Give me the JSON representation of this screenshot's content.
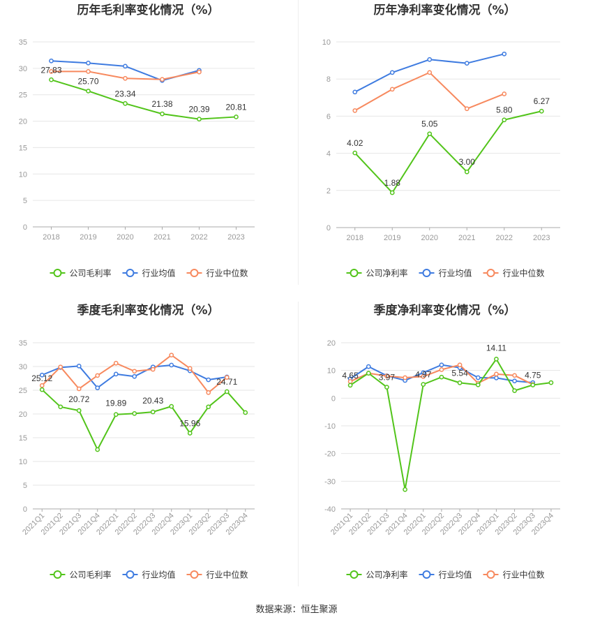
{
  "footer": {
    "label": "数据来源：",
    "source": "恒生聚源"
  },
  "legend_labels": {
    "gross_company": "公司毛利率",
    "net_company": "公司净利率",
    "industry_avg": "行业均值",
    "industry_median": "行业中位数"
  },
  "colors": {
    "company": "#52c41a",
    "industry_avg": "#3e7be0",
    "industry_median": "#f7895e",
    "axis": "#999999",
    "grid": "#e6e6e6",
    "title": "#333333"
  },
  "chart_data": [
    {
      "id": "annual_gross",
      "type": "line",
      "title": "历年毛利率变化情况（%）",
      "categories": [
        "2018",
        "2019",
        "2020",
        "2021",
        "2022",
        "2023"
      ],
      "ylim": [
        0,
        35
      ],
      "yticks": [
        0,
        5,
        10,
        15,
        20,
        25,
        30,
        35
      ],
      "grid": true,
      "legend_position": "bottom",
      "series": [
        {
          "name": "公司毛利率",
          "role": "company",
          "values": [
            27.83,
            25.7,
            23.34,
            21.38,
            20.39,
            20.81
          ],
          "labels": [
            "27.83",
            "25.70",
            "23.34",
            "21.38",
            "20.39",
            "20.81"
          ]
        },
        {
          "name": "行业均值",
          "role": "industry_avg",
          "values": [
            31.4,
            31.0,
            30.4,
            27.7,
            29.6,
            null
          ]
        },
        {
          "name": "行业中位数",
          "role": "industry_median",
          "values": [
            29.4,
            29.4,
            28.1,
            27.9,
            29.3,
            null
          ]
        }
      ]
    },
    {
      "id": "annual_net",
      "type": "line",
      "title": "历年净利率变化情况（%）",
      "categories": [
        "2018",
        "2019",
        "2020",
        "2021",
        "2022",
        "2023"
      ],
      "ylim": [
        0,
        10
      ],
      "yticks": [
        0,
        2,
        4,
        6,
        8,
        10
      ],
      "grid": true,
      "legend_position": "bottom",
      "series": [
        {
          "name": "公司净利率",
          "role": "company",
          "values": [
            4.02,
            1.88,
            5.05,
            3.0,
            5.8,
            6.27
          ],
          "labels": [
            "4.02",
            "1.88",
            "5.05",
            "3.00",
            "5.80",
            "6.27"
          ]
        },
        {
          "name": "行业均值",
          "role": "industry_avg",
          "values": [
            7.3,
            8.35,
            9.05,
            8.85,
            9.35,
            null
          ]
        },
        {
          "name": "行业中位数",
          "role": "industry_median",
          "values": [
            6.3,
            7.45,
            8.35,
            6.4,
            7.2,
            null
          ]
        }
      ]
    },
    {
      "id": "quarterly_gross",
      "type": "line",
      "title": "季度毛利率变化情况（%）",
      "categories": [
        "2021Q1",
        "2021Q2",
        "2021Q3",
        "2021Q4",
        "2022Q1",
        "2022Q2",
        "2022Q3",
        "2022Q4",
        "2023Q1",
        "2023Q2",
        "2023Q3",
        "2023Q4"
      ],
      "ylim": [
        0,
        35
      ],
      "yticks": [
        0,
        5,
        10,
        15,
        20,
        25,
        30,
        35
      ],
      "grid": true,
      "legend_position": "bottom",
      "series": [
        {
          "name": "公司毛利率",
          "role": "company",
          "values": [
            25.12,
            21.5,
            20.72,
            12.5,
            19.89,
            20.1,
            20.43,
            21.6,
            15.96,
            21.5,
            24.71,
            20.3
          ],
          "labels": [
            "25.12",
            "",
            "20.72",
            "",
            "19.89",
            "",
            "20.43",
            "",
            "15.96",
            "",
            "24.71",
            ""
          ]
        },
        {
          "name": "行业均值",
          "role": "industry_avg",
          "values": [
            28.2,
            29.8,
            30.1,
            25.5,
            28.4,
            27.9,
            29.9,
            30.3,
            29.1,
            27.2,
            27.8,
            null
          ]
        },
        {
          "name": "行业中位数",
          "role": "industry_median",
          "values": [
            26.0,
            29.9,
            25.3,
            28.1,
            30.7,
            29.0,
            29.4,
            32.4,
            29.6,
            24.5,
            27.7,
            null
          ]
        }
      ]
    },
    {
      "id": "quarterly_net",
      "type": "line",
      "title": "季度净利率变化情况（%）",
      "categories": [
        "2021Q1",
        "2021Q2",
        "2021Q3",
        "2021Q4",
        "2022Q1",
        "2022Q2",
        "2022Q3",
        "2022Q4",
        "2023Q1",
        "2023Q2",
        "2023Q3",
        "2023Q4"
      ],
      "ylim": [
        -40,
        20
      ],
      "yticks": [
        -40,
        -30,
        -20,
        -10,
        0,
        10,
        20
      ],
      "grid": true,
      "legend_position": "bottom",
      "series": [
        {
          "name": "公司净利率",
          "role": "company",
          "values": [
            4.65,
            9.0,
            3.97,
            -33.0,
            4.97,
            7.6,
            5.54,
            4.8,
            14.11,
            2.7,
            4.75,
            5.6
          ],
          "labels": [
            "4.65",
            "",
            "3.97",
            "",
            "4.97",
            "",
            "5.54",
            "",
            "14.11",
            "",
            "4.75",
            ""
          ]
        },
        {
          "name": "行业均值",
          "role": "industry_avg",
          "values": [
            7.0,
            11.4,
            8.1,
            6.4,
            9.2,
            12.0,
            11.0,
            7.4,
            7.3,
            6.2,
            5.6,
            null
          ]
        },
        {
          "name": "行业中位数",
          "role": "industry_median",
          "values": [
            6.0,
            9.0,
            8.0,
            7.4,
            7.8,
            10.3,
            12.0,
            5.4,
            8.7,
            8.2,
            4.9,
            null
          ]
        }
      ]
    }
  ]
}
